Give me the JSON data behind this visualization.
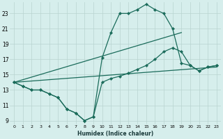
{
  "xlabel": "Humidex (Indice chaleur)",
  "xlim": [
    -0.5,
    23.5
  ],
  "ylim": [
    8.5,
    24.5
  ],
  "yticks": [
    9,
    11,
    13,
    15,
    17,
    19,
    21,
    23
  ],
  "xticks": [
    0,
    1,
    2,
    3,
    4,
    5,
    6,
    7,
    8,
    9,
    10,
    11,
    12,
    13,
    14,
    15,
    16,
    17,
    18,
    19,
    20,
    21,
    22,
    23
  ],
  "bg_color": "#d6eeec",
  "grid_color": "#b8d4d0",
  "line_color": "#1a6b5a",
  "line1_x": [
    0,
    1,
    2,
    3,
    4,
    5,
    6,
    7,
    8,
    9,
    10,
    11,
    12,
    13,
    14,
    15,
    16,
    17,
    18,
    19,
    20,
    21,
    22,
    23
  ],
  "line1_y": [
    14.0,
    13.5,
    13.0,
    13.0,
    12.5,
    12.0,
    10.5,
    10.0,
    9.0,
    9.5,
    17.2,
    20.5,
    23.0,
    23.0,
    23.5,
    24.2,
    23.5,
    23.0,
    21.0,
    16.5,
    16.2,
    15.5,
    16.0,
    16.2
  ],
  "line2_x": [
    0,
    1,
    2,
    3,
    4,
    5,
    6,
    7,
    8,
    9,
    10,
    11,
    12,
    13,
    14,
    15,
    16,
    17,
    18,
    19,
    20,
    21,
    22,
    23
  ],
  "line2_y": [
    14.0,
    13.5,
    13.0,
    13.0,
    12.5,
    12.0,
    10.5,
    10.0,
    9.0,
    9.5,
    14.0,
    14.5,
    14.8,
    15.2,
    15.7,
    16.2,
    17.0,
    18.0,
    18.5,
    18.0,
    16.2,
    15.5,
    16.0,
    16.2
  ],
  "line3_x": [
    0,
    19
  ],
  "line3_y": [
    14.0,
    20.5
  ],
  "line4_x": [
    0,
    23
  ],
  "line4_y": [
    14.0,
    16.0
  ],
  "figsize": [
    3.2,
    2.0
  ],
  "dpi": 100
}
